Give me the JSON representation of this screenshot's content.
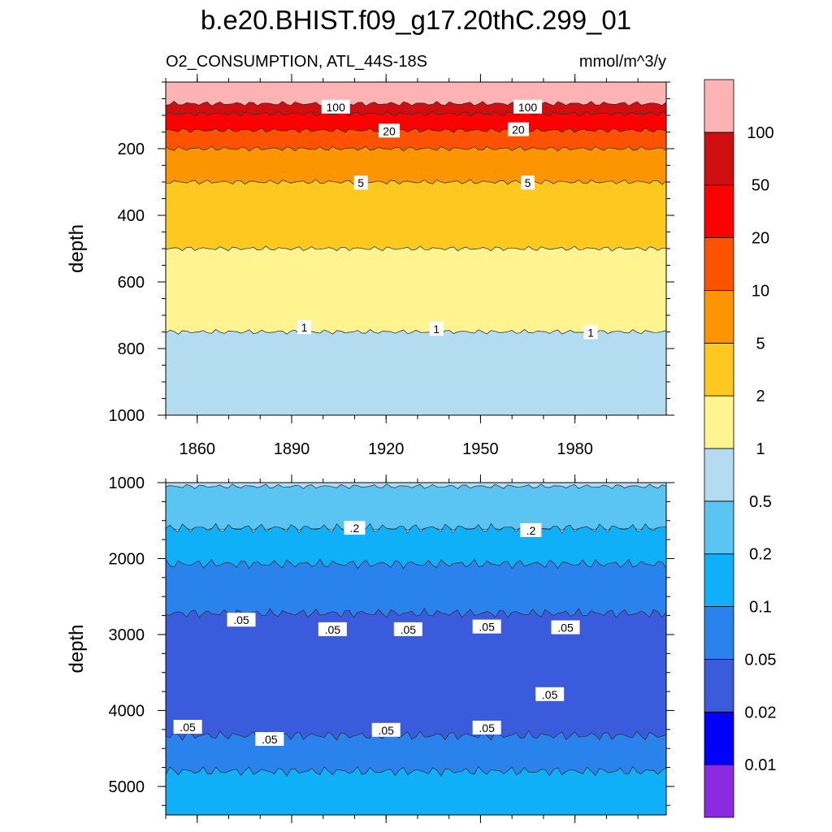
{
  "title": "b.e20.BHIST.f09_g17.20thC.299_01",
  "subtitle_left": "O2_CONSUMPTION, ATL_44S-18S",
  "subtitle_right": "mmol/m^3/y",
  "chart_data": {
    "type": "contour",
    "variable": "O2_CONSUMPTION",
    "units": "mmol/m^3/y",
    "x": {
      "range": [
        1850,
        2009
      ],
      "ticks": [
        1860,
        1890,
        1920,
        1950,
        1980
      ]
    },
    "colorbar": {
      "levels": [
        "0.01",
        "0.02",
        "0.05",
        "0.1",
        "0.2",
        "0.5",
        "1",
        "2",
        "5",
        "10",
        "20",
        "50",
        "100"
      ],
      "colors": [
        "#8a2be2",
        "#0000ff",
        "#3a5bdc",
        "#2a82ec",
        "#10b0f8",
        "#5ac4f2",
        "#b3dcf1",
        "#fff490",
        "#fdc921",
        "#fd9500",
        "#fd5200",
        "#fc0002",
        "#cf0f0f",
        "#fdb2b4"
      ]
    },
    "panels": [
      {
        "name": "upper",
        "ylabel": "depth",
        "yrange": [
          0,
          1000
        ],
        "yticks": [
          200,
          400,
          600,
          800,
          1000
        ],
        "bands": [
          {
            "from": 0,
            "to": 65,
            "color": "#fdb2b4"
          },
          {
            "from": 65,
            "to": 95,
            "color": "#cf0f0f"
          },
          {
            "from": 95,
            "to": 145,
            "color": "#fc0002"
          },
          {
            "from": 145,
            "to": 200,
            "color": "#fd5200"
          },
          {
            "from": 200,
            "to": 300,
            "color": "#fd9500"
          },
          {
            "from": 300,
            "to": 500,
            "color": "#fdc921"
          },
          {
            "from": 500,
            "to": 750,
            "color": "#fff490"
          },
          {
            "from": 750,
            "to": 1000,
            "color": "#b3dcf1"
          }
        ],
        "contour_labels": [
          {
            "text": "100",
            "year": 1904,
            "depth": 75
          },
          {
            "text": "100",
            "year": 1965,
            "depth": 75
          },
          {
            "text": "20",
            "year": 1921,
            "depth": 147
          },
          {
            "text": "20",
            "year": 1962,
            "depth": 143
          },
          {
            "text": "5",
            "year": 1912,
            "depth": 303
          },
          {
            "text": "5",
            "year": 1965,
            "depth": 303
          },
          {
            "text": "1",
            "year": 1894,
            "depth": 737
          },
          {
            "text": "1",
            "year": 1936,
            "depth": 742
          },
          {
            "text": "1",
            "year": 1985,
            "depth": 752
          }
        ]
      },
      {
        "name": "lower",
        "ylabel": "depth",
        "yrange": [
          1000,
          5375
        ],
        "yticks": [
          1000,
          2000,
          3000,
          4000,
          5000
        ],
        "bands": [
          {
            "from": 1000,
            "to": 1050,
            "color": "#b3dcf1"
          },
          {
            "from": 1050,
            "to": 1600,
            "color": "#5ac4f2"
          },
          {
            "from": 1600,
            "to": 2070,
            "color": "#10b0f8"
          },
          {
            "from": 2070,
            "to": 2720,
            "color": "#2a82ec"
          },
          {
            "from": 2720,
            "to": 4330,
            "color": "#3a5bdc"
          },
          {
            "from": 4330,
            "to": 4800,
            "color": "#2a82ec"
          },
          {
            "from": 4800,
            "to": 5375,
            "color": "#10b0f8"
          }
        ],
        "contour_labels": [
          {
            "text": ".2",
            "year": 1910,
            "depth": 1600
          },
          {
            "text": ".2",
            "year": 1966,
            "depth": 1630
          },
          {
            "text": ".05",
            "year": 1874,
            "depth": 2810
          },
          {
            "text": ".05",
            "year": 1903,
            "depth": 2935
          },
          {
            "text": ".05",
            "year": 1927,
            "depth": 2935
          },
          {
            "text": ".05",
            "year": 1952,
            "depth": 2900
          },
          {
            "text": ".05",
            "year": 1977,
            "depth": 2910
          },
          {
            "text": ".05",
            "year": 1972,
            "depth": 3790
          },
          {
            "text": ".05",
            "year": 1857,
            "depth": 4220
          },
          {
            "text": ".05",
            "year": 1883,
            "depth": 4380
          },
          {
            "text": ".05",
            "year": 1920,
            "depth": 4260
          },
          {
            "text": ".05",
            "year": 1952,
            "depth": 4230
          }
        ]
      }
    ]
  }
}
